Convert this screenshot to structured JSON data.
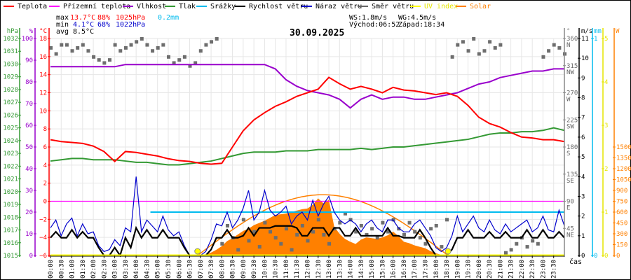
{
  "legend": [
    {
      "label": "Teplota",
      "color": "#ff0000"
    },
    {
      "label": "Přízemní teplota",
      "color": "#ff00ff"
    },
    {
      "label": "Vlhkost",
      "color": "#9900cc"
    },
    {
      "label": "Tlak",
      "color": "#339933"
    },
    {
      "label": "Srážky",
      "color": "#00bbee"
    },
    {
      "label": "Rychlost větru",
      "color": "#000000"
    },
    {
      "label": "Náraz větru",
      "color": "#0000cc"
    },
    {
      "label": "Směr větru",
      "color": "#666666"
    },
    {
      "label": "UV index",
      "color": "#ffff00"
    },
    {
      "label": "Solar",
      "color": "#ff8000"
    }
  ],
  "stats": {
    "max_label": "max",
    "max_temp": "13.7°C",
    "max_hum": "88%",
    "max_press": "1025hPa",
    "rain": "0.2mm",
    "min_label": "min",
    "min_temp": "4.1°C",
    "min_hum": "68%",
    "min_press": "1022hPa",
    "avg_label": "avg",
    "avg_temp": "8.5°C",
    "ws": "WS:1.8m/s",
    "wg": "WG:4.5m/s",
    "sunrise": "Východ:06:52",
    "sunset": "Západ:18:34"
  },
  "date": "30.09.2025",
  "x_axis_label": "čas",
  "chart_data": {
    "type": "line",
    "title": "30.09.2025",
    "xlabel": "čas",
    "x_ticks": [
      "00:00",
      "00:30",
      "01:00",
      "01:30",
      "02:00",
      "02:30",
      "03:00",
      "03:30",
      "04:00",
      "04:30",
      "05:00",
      "05:30",
      "06:00",
      "06:30",
      "07:00",
      "07:30",
      "08:00",
      "08:30",
      "09:00",
      "09:30",
      "10:00",
      "10:30",
      "11:00",
      "11:30",
      "12:00",
      "12:30",
      "13:00",
      "13:30",
      "14:00",
      "14:30",
      "15:00",
      "15:30",
      "16:00",
      "16:30",
      "17:00",
      "17:30",
      "18:00",
      "18:30",
      "19:00",
      "19:30",
      "20:00",
      "20:30",
      "21:00",
      "21:30",
      "22:00",
      "22:30",
      "23:00",
      "23:30"
    ],
    "axes": {
      "pressure": {
        "unit": "hPa",
        "range": [
          1015,
          1032
        ],
        "color": "#339933"
      },
      "humidity": {
        "unit": "%",
        "range": [
          0,
          100
        ],
        "color": "#9900cc"
      },
      "temperature": {
        "unit": "°C",
        "range": [
          -6,
          18
        ],
        "color": "#ff0000"
      },
      "direction": {
        "unit": "°",
        "range": [
          0,
          360
        ],
        "ticks": [
          "0",
          "45",
          "90",
          "135",
          "180",
          "225",
          "270",
          "315",
          "360"
        ],
        "compass": [
          "",
          "NE",
          "E",
          "SE",
          "S",
          "SW",
          "W",
          "NW",
          "N"
        ],
        "color": "#888888"
      },
      "wind": {
        "unit": "m/s",
        "range": [
          0,
          11
        ],
        "color": "#000000"
      },
      "rain": {
        "unit": "mm",
        "range": [
          0,
          1
        ],
        "color": "#00bbee"
      },
      "uv": {
        "unit": "",
        "range": [
          0,
          5
        ],
        "color": "#ffff00"
      },
      "solar": {
        "unit": "W",
        "range": [
          0,
          1500
        ],
        "color": "#ff8000"
      }
    },
    "interval_30min": {
      "temperature": [
        6.8,
        6.6,
        6.5,
        6.4,
        6.1,
        5.5,
        4.4,
        5.5,
        5.4,
        5.2,
        5.0,
        4.7,
        4.5,
        4.4,
        4.2,
        4.1,
        4.2,
        6.0,
        7.8,
        9.0,
        9.8,
        10.5,
        11.0,
        11.6,
        12.0,
        12.4,
        13.7,
        13.0,
        12.4,
        12.7,
        12.4,
        12.0,
        12.6,
        12.3,
        12.2,
        12.0,
        11.8,
        12.0,
        11.6,
        10.6,
        9.3,
        8.6,
        8.2,
        7.6,
        7.1,
        7.0,
        6.8,
        6.8,
        6.6
      ],
      "ground_temperature": [
        0,
        0,
        0,
        0,
        0,
        0,
        0,
        0,
        0,
        0,
        0,
        0,
        0,
        0,
        0,
        0,
        0,
        0,
        0,
        0,
        0,
        0,
        0,
        0,
        0,
        0,
        0,
        0,
        0,
        0,
        0,
        0,
        0,
        0,
        0,
        0,
        0,
        0,
        0,
        0,
        0,
        0,
        0,
        0,
        0,
        0,
        0,
        0,
        0
      ],
      "humidity": [
        87,
        87,
        87,
        87,
        87,
        87,
        87,
        88,
        88,
        88,
        88,
        88,
        88,
        88,
        88,
        88,
        88,
        88,
        88,
        88,
        88,
        86,
        81,
        78,
        76,
        75,
        74,
        72,
        68,
        72,
        74,
        72,
        73,
        73,
        72,
        72,
        73,
        74,
        75,
        77,
        79,
        80,
        82,
        83,
        84,
        85,
        85,
        86,
        86
      ],
      "pressure": [
        1022.4,
        1022.5,
        1022.6,
        1022.6,
        1022.5,
        1022.5,
        1022.5,
        1022.4,
        1022.3,
        1022.3,
        1022.2,
        1022.1,
        1022.1,
        1022.2,
        1022.3,
        1022.4,
        1022.6,
        1022.8,
        1023.0,
        1023.1,
        1023.1,
        1023.1,
        1023.2,
        1023.2,
        1023.2,
        1023.3,
        1023.3,
        1023.3,
        1023.3,
        1023.4,
        1023.3,
        1023.4,
        1023.5,
        1023.5,
        1023.6,
        1023.7,
        1023.8,
        1023.9,
        1024.0,
        1024.1,
        1024.3,
        1024.5,
        1024.6,
        1024.6,
        1024.7,
        1024.7,
        1024.8,
        1025.0,
        1024.8
      ]
    },
    "interval_15min": {
      "wind_speed": [
        0.9,
        1.2,
        0.9,
        0.9,
        1.3,
        0.9,
        1.2,
        0.9,
        0.9,
        0.4,
        0,
        0,
        0.4,
        0,
        0.9,
        0.4,
        1.4,
        0.9,
        1.3,
        0.9,
        0.9,
        1.3,
        0.9,
        0.9,
        0.9,
        0.4,
        0,
        0,
        0,
        0,
        0.3,
        0.9,
        0.9,
        1.3,
        0.9,
        0.9,
        1.0,
        1.4,
        1.0,
        1.4,
        1.4,
        1.4,
        1.5,
        1.5,
        1.5,
        1.5,
        1.4,
        1.0,
        1.0,
        1.4,
        1.4,
        1.4,
        1.0,
        1.4,
        1.4,
        1.0,
        1.0,
        1.4,
        1.0,
        1.0,
        1.0,
        1.0,
        1.0,
        1.4,
        1.0,
        1.0,
        0.9,
        0.9,
        0.9,
        1.3,
        0.9,
        0.4,
        0,
        0,
        0,
        0.3,
        0.9,
        0.9,
        1.3,
        0.9,
        0.9,
        0.9,
        1.2,
        0.9,
        0.9,
        1.2,
        0.9,
        0.9,
        0.9,
        1.3,
        0.9,
        0.9,
        1.3,
        0.9,
        0.9,
        1.2,
        0.9
      ],
      "wind_gust": [
        1.4,
        1.8,
        1.0,
        1.6,
        1.9,
        1.0,
        1.6,
        1.1,
        1.2,
        0.5,
        0.2,
        0.3,
        0.8,
        0.5,
        1.4,
        1.2,
        4.0,
        1.2,
        1.8,
        1.5,
        1.2,
        2.0,
        1.3,
        1.0,
        1.2,
        0.5,
        0,
        0,
        0,
        0.2,
        0.8,
        1.6,
        1.5,
        2.2,
        1.4,
        1.8,
        2.4,
        3.3,
        1.8,
        2.2,
        3.3,
        2.3,
        2.0,
        2.2,
        2.5,
        1.6,
        2.0,
        2.2,
        1.8,
        2.8,
        2.0,
        2.6,
        3.0,
        2.2,
        1.8,
        1.6,
        1.8,
        1.6,
        1.2,
        1.6,
        1.8,
        1.4,
        1.2,
        1.8,
        1.8,
        1.4,
        1.2,
        1.2,
        1.6,
        1.8,
        1.4,
        1.0,
        0.4,
        0.2,
        0.4,
        1.0,
        2.0,
        1.2,
        1.6,
        2.0,
        1.4,
        1.2,
        1.8,
        1.3,
        1.1,
        1.6,
        1.2,
        1.4,
        1.6,
        1.8,
        1.2,
        1.4,
        2.0,
        1.3,
        1.2,
        2.3,
        1.5
      ],
      "wind_direction": [
        345,
        335,
        350,
        350,
        340,
        345,
        350,
        340,
        330,
        325,
        320,
        325,
        350,
        340,
        345,
        350,
        355,
        360,
        350,
        340,
        345,
        350,
        330,
        320,
        325,
        330,
        315,
        320,
        340,
        350,
        355,
        360,
        20,
        50,
        30,
        10,
        60,
        25,
        40,
        15,
        55,
        40,
        30,
        20,
        45,
        10,
        35,
        50,
        25,
        40,
        60,
        35,
        20,
        45,
        55,
        70,
        60,
        40,
        50,
        35,
        45,
        30,
        55,
        40,
        60,
        45,
        35,
        55,
        40,
        30,
        20,
        45,
        50,
        15,
        60,
        330,
        350,
        355,
        340,
        360,
        335,
        340,
        355,
        345,
        350,
        5,
        10,
        20,
        30,
        15,
        25,
        20,
        330,
        340,
        350,
        345,
        335
      ]
    },
    "solar": {
      "start": "07:00",
      "interval_min": 15,
      "values": [
        0,
        10,
        40,
        80,
        130,
        200,
        240,
        290,
        340,
        370,
        420,
        450,
        480,
        520,
        560,
        570,
        580,
        600,
        620,
        640,
        650,
        700,
        790,
        720,
        770,
        400,
        300,
        230,
        190,
        160,
        220,
        250,
        240,
        230,
        250,
        280,
        330,
        270,
        190,
        170,
        140,
        120,
        100,
        60,
        30,
        10
      ]
    },
    "solar_clear_sky_peak": 840,
    "rain_total": {
      "start": "04:40",
      "value": 0.2
    },
    "uv_index": 0,
    "sunrise": "06:52",
    "sunset": "18:34"
  }
}
